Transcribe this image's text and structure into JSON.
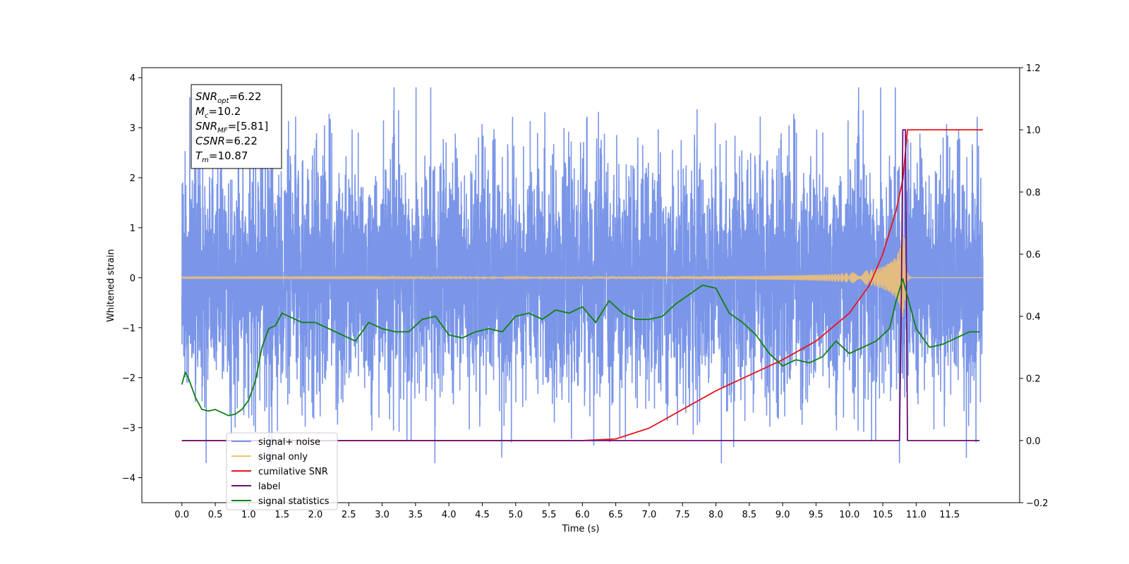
{
  "chart_data": {
    "type": "line",
    "xlabel": "Time (s)",
    "ylabel": "Whitened strain",
    "xlim": [
      -0.6,
      12.55
    ],
    "ylim": [
      -4.5,
      4.2
    ],
    "y2lim": [
      -0.2,
      1.2
    ],
    "x_ticks": [
      "0.0",
      "0.5",
      "1.0",
      "1.5",
      "2.0",
      "2.5",
      "3.0",
      "3.5",
      "4.0",
      "4.5",
      "5.0",
      "5.5",
      "6.0",
      "6.5",
      "7.0",
      "7.5",
      "8.0",
      "8.5",
      "9.0",
      "9.5",
      "10.0",
      "10.5",
      "11.0",
      "11.5"
    ],
    "y_ticks": [
      "−4",
      "−3",
      "−2",
      "−1",
      "0",
      "1",
      "2",
      "3",
      "4"
    ],
    "y2_ticks": [
      "−0.2",
      "0.0",
      "0.2",
      "0.4",
      "0.6",
      "0.8",
      "1.0",
      "1.2"
    ],
    "annotation": [
      {
        "sym": "SNR",
        "sub": "opt",
        "value": "=6.22"
      },
      {
        "sym": "M",
        "sub": "c",
        "value": "=10.2"
      },
      {
        "sym": "SNR",
        "sub": "MF",
        "value": "=[5.81]"
      },
      {
        "sym": "CSNR",
        "sub": "",
        "value": "=6.22"
      },
      {
        "sym": "T",
        "sub": "m",
        "value": "=10.87"
      }
    ],
    "legend_position": "lower-left",
    "series": [
      {
        "name": "signal+ noise",
        "color": "#7b96e8",
        "axis": "left",
        "style": "noise",
        "x_range": [
          0.0,
          12.0
        ],
        "noise_std": 1.15,
        "spike_max": 3.8
      },
      {
        "name": "signal only",
        "color": "#f5c36e",
        "axis": "left",
        "style": "chirp",
        "x_range": [
          0.0,
          12.0
        ],
        "peak_time": 10.82,
        "peak_amplitude": 0.95
      },
      {
        "name": "cumilative SNR",
        "color": "#e8141c",
        "axis": "right",
        "x": [
          0.0,
          6.0,
          6.5,
          7.0,
          7.5,
          8.0,
          8.5,
          9.0,
          9.5,
          10.0,
          10.3,
          10.5,
          10.7,
          10.8,
          10.87,
          11.0,
          12.0
        ],
        "y": [
          0.0,
          0.0,
          0.005,
          0.04,
          0.1,
          0.16,
          0.21,
          0.26,
          0.32,
          0.41,
          0.5,
          0.6,
          0.74,
          0.84,
          1.0,
          1.0,
          1.0
        ]
      },
      {
        "name": "label",
        "color": "#6a0f70",
        "axis": "right",
        "x": [
          0.0,
          10.75,
          10.78,
          10.8,
          10.84,
          10.87,
          11.95
        ],
        "y": [
          0.0,
          0.0,
          0.5,
          1.0,
          1.0,
          0.0,
          0.0
        ]
      },
      {
        "name": "signal statistics",
        "color": "#118011",
        "axis": "right",
        "x": [
          0.0,
          0.05,
          0.1,
          0.2,
          0.3,
          0.4,
          0.5,
          0.6,
          0.7,
          0.8,
          0.9,
          1.0,
          1.1,
          1.2,
          1.3,
          1.4,
          1.5,
          1.6,
          1.7,
          1.8,
          2.0,
          2.2,
          2.4,
          2.6,
          2.8,
          3.0,
          3.2,
          3.4,
          3.6,
          3.8,
          4.0,
          4.2,
          4.4,
          4.6,
          4.8,
          5.0,
          5.2,
          5.4,
          5.6,
          5.8,
          6.0,
          6.2,
          6.4,
          6.6,
          6.8,
          7.0,
          7.2,
          7.4,
          7.6,
          7.8,
          8.0,
          8.2,
          8.4,
          8.6,
          8.8,
          9.0,
          9.2,
          9.4,
          9.6,
          9.8,
          10.0,
          10.2,
          10.4,
          10.6,
          10.7,
          10.8,
          10.9,
          11.0,
          11.2,
          11.4,
          11.6,
          11.8,
          11.95
        ],
        "y": [
          0.18,
          0.22,
          0.2,
          0.14,
          0.1,
          0.095,
          0.1,
          0.09,
          0.08,
          0.085,
          0.1,
          0.13,
          0.19,
          0.3,
          0.36,
          0.37,
          0.41,
          0.4,
          0.39,
          0.38,
          0.38,
          0.36,
          0.34,
          0.32,
          0.38,
          0.36,
          0.35,
          0.35,
          0.39,
          0.4,
          0.34,
          0.33,
          0.35,
          0.36,
          0.35,
          0.4,
          0.41,
          0.39,
          0.42,
          0.41,
          0.43,
          0.38,
          0.45,
          0.41,
          0.39,
          0.39,
          0.4,
          0.44,
          0.47,
          0.5,
          0.49,
          0.41,
          0.38,
          0.34,
          0.28,
          0.24,
          0.26,
          0.25,
          0.27,
          0.32,
          0.28,
          0.3,
          0.32,
          0.36,
          0.45,
          0.52,
          0.44,
          0.36,
          0.3,
          0.31,
          0.33,
          0.35,
          0.35
        ]
      }
    ]
  }
}
